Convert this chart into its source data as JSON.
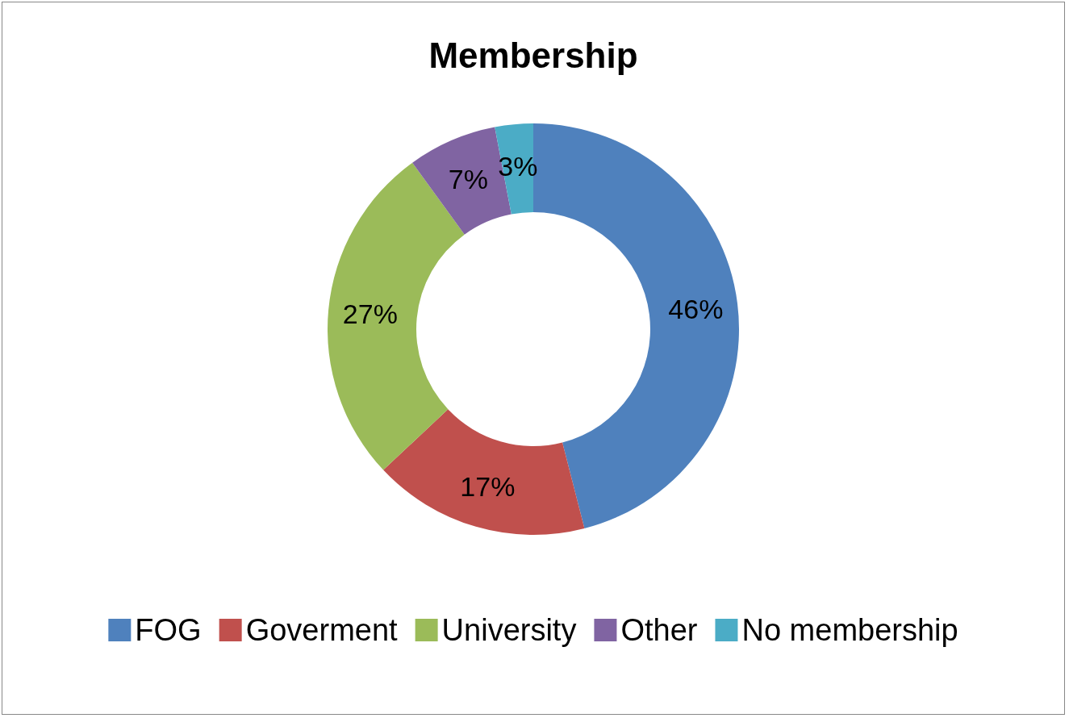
{
  "chart_data": {
    "type": "donut",
    "title": "Membership",
    "categories": [
      "FOG",
      "Goverment",
      "University",
      "Other",
      "No membership"
    ],
    "values": [
      46,
      17,
      27,
      7,
      3
    ],
    "value_labels": [
      "46%",
      "17%",
      "27%",
      "7%",
      "3%"
    ],
    "colors": [
      "#4f81bd",
      "#c0504d",
      "#9bbb59",
      "#8064a2",
      "#4bacc6"
    ],
    "legend": "bottom"
  }
}
